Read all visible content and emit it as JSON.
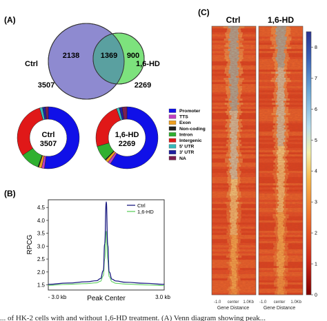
{
  "panels": {
    "a": "(A)",
    "b": "(B)",
    "c": "(C)"
  },
  "colors": {
    "ctrl_circle": "#8e8ad0",
    "hd_circle": "#7de27d",
    "overlap": "#5aa0a0",
    "promoter": "#1010e8",
    "tts": "#c040c0",
    "exon": "#f0a020",
    "non_coding": "#202020",
    "intron": "#30b030",
    "intergenic": "#e01818",
    "utr5": "#38b8b8",
    "utr3": "#2020a0",
    "na": "#7a2050",
    "ctrl_line": "#1a1a80",
    "hd_line": "#60d060"
  },
  "chart_data": [
    {
      "type": "venn",
      "sets": [
        {
          "name": "Ctrl",
          "total": "3507",
          "unique": "2138"
        },
        {
          "name": "1,6-HD",
          "total": "2269",
          "unique": "900"
        }
      ],
      "overlap": "1369"
    },
    {
      "type": "pie",
      "variant": "donut",
      "charts": [
        {
          "center_label": [
            "Ctrl",
            "3507"
          ],
          "slices": [
            {
              "name": "Promoter",
              "value": 52
            },
            {
              "name": "TTS",
              "value": 1.5
            },
            {
              "name": "Exon",
              "value": 1.5
            },
            {
              "name": "Non-coding",
              "value": 0.5
            },
            {
              "name": "Intron",
              "value": 10
            },
            {
              "name": "Intergenic",
              "value": 30
            },
            {
              "name": "5' UTR",
              "value": 1.5
            },
            {
              "name": "3' UTR",
              "value": 1.5
            },
            {
              "name": "NA",
              "value": 1.5
            }
          ]
        },
        {
          "center_label": [
            "1,6-HD",
            "2269"
          ],
          "slices": [
            {
              "name": "Promoter",
              "value": 59
            },
            {
              "name": "TTS",
              "value": 1.5
            },
            {
              "name": "Exon",
              "value": 1.5
            },
            {
              "name": "Non-coding",
              "value": 0.5
            },
            {
              "name": "Intron",
              "value": 8
            },
            {
              "name": "Intergenic",
              "value": 24
            },
            {
              "name": "5' UTR",
              "value": 1.5
            },
            {
              "name": "3' UTR",
              "value": 1.5
            },
            {
              "name": "NA",
              "value": 2.5
            }
          ]
        }
      ],
      "legend": [
        "Promoter",
        "TTS",
        "Exon",
        "Non-coding",
        "Intron",
        "Intergenic",
        "5' UTR",
        "3' UTR",
        "NA"
      ],
      "legend_position": "right"
    },
    {
      "type": "line",
      "ylabel": "RPCG",
      "xlabel": "Peak Center",
      "x_tick_left": "- 3.0 kb",
      "x_tick_right": "3.0 kb",
      "x": [
        -3.0,
        -2.0,
        -1.0,
        -0.5,
        -0.3,
        -0.15,
        -0.08,
        0,
        0.08,
        0.15,
        0.3,
        0.5,
        1.0,
        2.0,
        3.0
      ],
      "ylim": [
        1.3,
        4.8
      ],
      "yticks": [
        "1.5",
        "2.0",
        "2.5",
        "3.0",
        "3.5",
        "4.0",
        "4.5"
      ],
      "series": [
        {
          "name": "Ctrl",
          "values": [
            1.52,
            1.57,
            1.62,
            1.66,
            1.74,
            2.05,
            3.1,
            4.72,
            3.05,
            2.0,
            1.72,
            1.65,
            1.6,
            1.56,
            1.52
          ]
        },
        {
          "name": "1,6-HD",
          "values": [
            1.48,
            1.52,
            1.55,
            1.58,
            1.64,
            1.85,
            2.5,
            3.58,
            2.45,
            1.82,
            1.62,
            1.56,
            1.53,
            1.5,
            1.47
          ]
        }
      ],
      "legend_position": "top-right"
    },
    {
      "type": "heatmap",
      "columns": [
        {
          "title": "Ctrl",
          "xlabel": "Gene Distance",
          "tick_left": "-1.0",
          "tick_center": "center",
          "tick_right": "1.0Kb"
        },
        {
          "title": "1,6-HD",
          "xlabel": "Gene Distance",
          "tick_left": "-1.0",
          "tick_center": "center",
          "tick_right": "1.0Kb"
        }
      ],
      "colorbar_ticks": [
        "0",
        "1",
        "2",
        "3",
        "4",
        "5",
        "6",
        "7",
        "8"
      ],
      "colorbar_range": [
        0,
        8.5
      ]
    }
  ],
  "caption": "... of HK-2 cells with and without 1,6-HD treatment. (A) Venn diagram showing peak..."
}
